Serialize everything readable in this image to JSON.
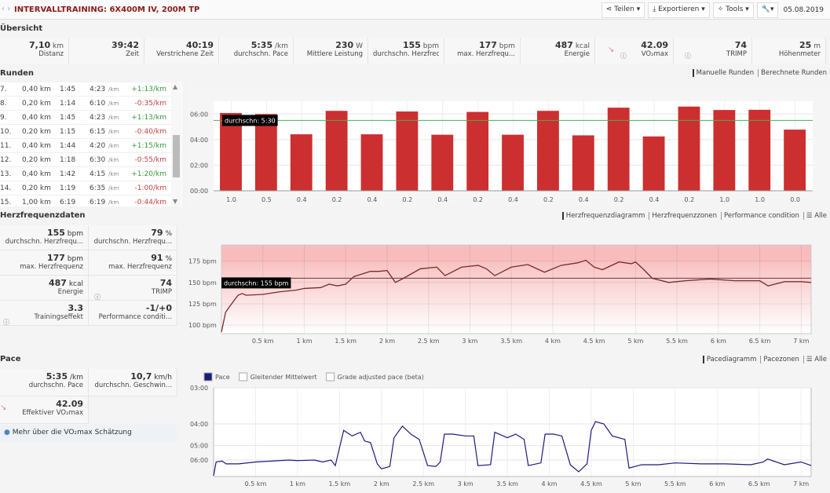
{
  "header": {
    "title": "INTERVALLTRAINING: 6X400M IV, 200M TP",
    "nav": "‹ ›",
    "buttons": [
      {
        "label": "Teilen ▾",
        "icon": "share-icon"
      },
      {
        "label": "Exportieren ▾",
        "icon": "download-icon"
      },
      {
        "label": "Tools ▾",
        "icon": "magic-wand-icon"
      },
      {
        "label": "▾",
        "icon": "wrench-icon"
      }
    ],
    "date": "05.08.2019"
  },
  "overview": {
    "heading": "Übersicht",
    "stats": [
      {
        "value": "7,10",
        "unit": "km",
        "label": "Distanz"
      },
      {
        "value": "39:42",
        "unit": "",
        "label": "Zeit"
      },
      {
        "value": "40:19",
        "unit": "",
        "label": "Verstrichene Zeit"
      },
      {
        "value": "5:35",
        "unit": "/km",
        "label": "durchschn. Pace"
      },
      {
        "value": "230",
        "unit": "W",
        "label": "Mittlere Leistung"
      },
      {
        "value": "155",
        "unit": "bpm",
        "label": "durchschn. Herzfrequ..."
      },
      {
        "value": "177",
        "unit": "bpm",
        "label": "max. Herzfrequ..."
      },
      {
        "value": "487",
        "unit": "kcal",
        "label": "Energie"
      },
      {
        "value": "42.09",
        "unit": "",
        "label": "VO₂max"
      },
      {
        "value": "74",
        "unit": "",
        "label": "TRIMP"
      },
      {
        "value": "25",
        "unit": "m",
        "label": "Höhenmeter"
      }
    ]
  },
  "laps": {
    "heading": "Runden",
    "tabs": [
      "Manuelle Runden",
      "Berechnete Runden"
    ],
    "rows": [
      [
        "7.",
        "0,40 km",
        "1:45",
        "4:23",
        "/km",
        "+1:13/km"
      ],
      [
        "8.",
        "0,20 km",
        "1:14",
        "6:10",
        "/km",
        "-0:35/km"
      ],
      [
        "9.",
        "0,40 km",
        "1:45",
        "4:23",
        "/km",
        "+1:13/km"
      ],
      [
        "10.",
        "0,20 km",
        "1:15",
        "6:15",
        "/km",
        "-0:40/km"
      ],
      [
        "11.",
        "0,40 km",
        "1:44",
        "4:20",
        "/km",
        "+1:15/km"
      ],
      [
        "12.",
        "0,20 km",
        "1:18",
        "6:30",
        "/km",
        "-0:55/km"
      ],
      [
        "13.",
        "0,40 km",
        "1:42",
        "4:15",
        "/km",
        "+1:20/km"
      ],
      [
        "14.",
        "0,20 km",
        "1:19",
        "6:35",
        "/km",
        "-1:00/km"
      ],
      [
        "15.",
        "1,00 km",
        "6:19",
        "6:19",
        "/km",
        "-0:44/km"
      ]
    ]
  },
  "hr": {
    "heading": "Herzfrequenzdaten",
    "tabs": [
      "Herzfrequenzdiagramm",
      "Herzfrequenzzonen",
      "Performance condition",
      "☰ Alle"
    ],
    "panels": [
      {
        "value": "155",
        "unit": "bpm",
        "label": "durchschn. Herzfrequ..."
      },
      {
        "value": "79",
        "unit": "%",
        "label": "durchschn. Herzfrequ..."
      },
      {
        "value": "177",
        "unit": "bpm",
        "label": "max. Herzfrequenz"
      },
      {
        "value": "91",
        "unit": "%",
        "label": "max. Herzfrequenz"
      },
      {
        "value": "487",
        "unit": "kcal",
        "label": "Energie"
      },
      {
        "value": "74",
        "unit": "",
        "label": "TRIMP"
      },
      {
        "value": "3.3",
        "unit": "",
        "label": "Trainingseffekt"
      },
      {
        "value": "-1/+0",
        "unit": "",
        "label": "Performance conditi..."
      }
    ]
  },
  "pace": {
    "heading": "Pace",
    "tabs": [
      "Pacediagramm",
      "Pacezonen",
      "☰ Alle"
    ],
    "panels": [
      {
        "value": "5:35",
        "unit": "/km",
        "label": "durchschn. Pace"
      },
      {
        "value": "10,7",
        "unit": "km/h",
        "label": "durchschn. Geschwin..."
      },
      {
        "value": "42.09",
        "unit": "",
        "label": "Effektiver VO₂max"
      }
    ],
    "info": "Mehr über die VO₂max Schätzung"
  },
  "chart_data": [
    {
      "type": "bar",
      "categories": [
        "1.0",
        "0.5",
        "0.4",
        "0.2",
        "0.4",
        "0.2",
        "0.4",
        "0.2",
        "0.4",
        "0.2",
        "0.4",
        "0.2",
        "0.4",
        "0.2",
        "1.0",
        "1.0",
        "0.0"
      ],
      "values": [
        "6:05",
        "6:00",
        "4:25",
        "6:15",
        "4:25",
        "6:12",
        "4:23",
        "6:10",
        "4:23",
        "6:15",
        "4:20",
        "6:30",
        "4:15",
        "6:35",
        "6:19",
        "6:20",
        "4:47"
      ],
      "yticks": [
        "00:00",
        "02:00",
        "04:00",
        "06:00"
      ],
      "ylim": [
        "0:00",
        "7:00"
      ],
      "average_label": "durchschn: 5:30",
      "average": "5:30",
      "color": "#cc2f2f",
      "avg_color": "#4caf50"
    },
    {
      "type": "line",
      "x": [
        0,
        0.05,
        0.1,
        0.2,
        0.25,
        0.3,
        0.5,
        0.7,
        0.9,
        1.0,
        1.2,
        1.3,
        1.4,
        1.5,
        1.6,
        1.8,
        1.9,
        2.0,
        2.1,
        2.2,
        2.4,
        2.6,
        2.7,
        2.9,
        3.1,
        3.2,
        3.3,
        3.5,
        3.7,
        3.9,
        4.1,
        4.3,
        4.4,
        4.5,
        4.6,
        4.8,
        4.95,
        5.0,
        5.1,
        5.2,
        5.4,
        5.6,
        5.9,
        6.2,
        6.5,
        6.6,
        6.8,
        7.0,
        7.12
      ],
      "y": [
        92,
        115,
        122,
        135,
        137,
        135,
        136,
        139,
        141,
        143,
        144,
        148,
        146,
        148,
        157,
        163,
        163,
        164,
        150,
        155,
        166,
        168,
        158,
        168,
        170,
        166,
        158,
        168,
        171,
        162,
        170,
        173,
        176,
        168,
        165,
        174,
        172,
        174,
        165,
        155,
        150,
        152,
        154,
        152,
        152,
        146,
        151,
        151,
        150
      ],
      "xticks": [
        "0.5 km",
        "1 km",
        "1.5 km",
        "2 km",
        "2.5 km",
        "3 km",
        "3.5 km",
        "4 km",
        "4.5 km",
        "5 km",
        "5.5 km",
        "6 km",
        "6.5 km",
        "7 km"
      ],
      "yticks": [
        "100 bpm",
        "125 bpm",
        "150 bpm",
        "175 bpm"
      ],
      "ylim": [
        90,
        194
      ],
      "xlim": [
        0,
        7.12
      ],
      "average": 155,
      "average_label": "durchschn: 155 bpm",
      "color": "#7a2a2a",
      "zone_color": "#f7b4b4"
    },
    {
      "type": "line",
      "legend": [
        "Pace",
        "Gleitender Mittelwert",
        "Grade adjusted pace (beta)"
      ],
      "x": [
        0,
        0.03,
        0.1,
        0.15,
        0.3,
        0.5,
        0.7,
        0.9,
        1.0,
        1.2,
        1.3,
        1.4,
        1.45,
        1.55,
        1.65,
        1.75,
        1.8,
        1.87,
        1.95,
        2.0,
        2.1,
        2.15,
        2.25,
        2.35,
        2.45,
        2.55,
        2.65,
        2.7,
        2.75,
        2.85,
        3.0,
        3.1,
        3.15,
        3.3,
        3.35,
        3.5,
        3.6,
        3.7,
        3.75,
        3.9,
        3.95,
        4.05,
        4.15,
        4.25,
        4.35,
        4.45,
        4.5,
        4.55,
        4.65,
        4.75,
        4.9,
        4.95,
        5.1,
        5.3,
        5.5,
        5.8,
        6.1,
        6.4,
        6.55,
        6.6,
        6.8,
        7.0,
        7.12
      ],
      "y": [
        "7:40",
        "6:10",
        "6:05",
        "6:20",
        "6:20",
        "6:10",
        "6:05",
        "6:00",
        "6:03",
        "6:00",
        "6:10",
        "6:00",
        "6:30",
        "4:15",
        "4:30",
        "4:20",
        "4:45",
        "4:50",
        "6:20",
        "6:50",
        "6:35",
        "4:35",
        "4:05",
        "4:25",
        "4:40",
        "6:30",
        "6:35",
        "6:10",
        "4:25",
        "4:25",
        "4:30",
        "4:30",
        "6:30",
        "6:25",
        "4:20",
        "4:35",
        "4:25",
        "4:40",
        "6:30",
        "6:15",
        "4:25",
        "4:25",
        "4:30",
        "6:25",
        "7:10",
        "6:20",
        "4:15",
        "3:55",
        "4:00",
        "4:30",
        "4:40",
        "6:45",
        "6:25",
        "6:25",
        "6:15",
        "6:20",
        "6:20",
        "6:25",
        "6:10",
        "5:55",
        "6:25",
        "6:10",
        "6:30"
      ],
      "xticks": [
        "0.5 km",
        "1 km",
        "1.5 km",
        "2 km",
        "2.5 km",
        "3 km",
        "3.5 km",
        "4 km",
        "4.5 km",
        "5 km",
        "5.5 km",
        "6 km",
        "6.5 km",
        "7 km"
      ],
      "yticks": [
        "03:00",
        "04:00",
        "05:00",
        "06:00"
      ],
      "xlim": [
        0,
        7.12
      ],
      "color": "#1a1a80"
    }
  ]
}
